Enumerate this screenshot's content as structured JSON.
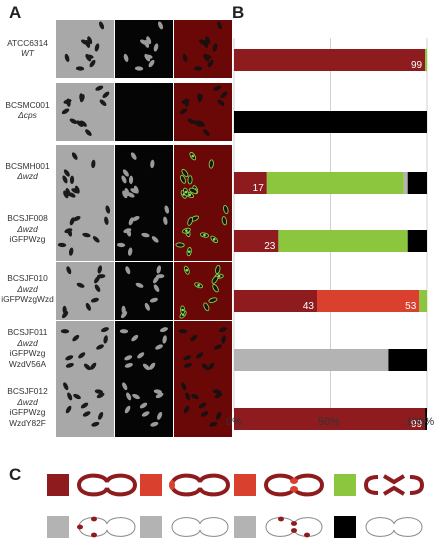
{
  "panels": {
    "a": "A",
    "b": "B",
    "c": "C"
  },
  "strains": [
    {
      "name": "ATCC6314",
      "genotype": "WT",
      "extra": []
    },
    {
      "name": "BCSMC001",
      "genotype": "Δcps",
      "extra": []
    },
    {
      "name": "BCSMH001",
      "genotype": "Δwzd",
      "extra": []
    },
    {
      "name": "BCSJF008",
      "genotype": "Δwzd",
      "extra": [
        "iGFPWzg"
      ]
    },
    {
      "name": "BCSJF010",
      "genotype": "Δwzd",
      "extra": [
        "iGFPWzgWzd"
      ]
    },
    {
      "name": "BCSJF011",
      "genotype": "Δwzd",
      "extra": [
        "iGFPWzg",
        "WzdV56A"
      ]
    },
    {
      "name": "BCSJF012",
      "genotype": "Δwzd",
      "extra": [
        "iGFPWzg",
        "WzdY82F"
      ]
    }
  ],
  "chart_data": {
    "type": "bar",
    "orientation": "horizontal-stacked",
    "categories": [
      "ATCC6314 WT",
      "BCSMC001 Δcps",
      "BCSMH001 Δwzd",
      "BCSJF008 Δwzd iGFPWzg",
      "BCSJF010 Δwzd iGFPWzgWzd",
      "BCSJF011 Δwzd iGFPWzg WzdV56A",
      "BCSJF012 Δwzd iGFPWzg WzdY82F"
    ],
    "series": [
      {
        "color": "#8e1c1f",
        "values": [
          99,
          0,
          17,
          23,
          43,
          0,
          99
        ]
      },
      {
        "color": "#d9412e",
        "values": [
          0,
          0,
          0,
          0,
          53,
          0,
          0
        ]
      },
      {
        "color": "#8cc63f",
        "values": [
          1,
          0,
          71,
          67,
          4,
          0,
          0
        ]
      },
      {
        "color": "#b3b3b3",
        "values": [
          0,
          0,
          2,
          0,
          0,
          80,
          0
        ]
      },
      {
        "color": "#000000",
        "values": [
          0,
          100,
          10,
          10,
          0,
          20,
          1
        ]
      }
    ],
    "data_labels": [
      {
        "row": 0,
        "series": 0,
        "text": "99"
      },
      {
        "row": 2,
        "series": 0,
        "text": "17"
      },
      {
        "row": 3,
        "series": 0,
        "text": "23"
      },
      {
        "row": 4,
        "series": 0,
        "text": "43"
      },
      {
        "row": 4,
        "series": 1,
        "text": "53"
      },
      {
        "row": 6,
        "series": 0,
        "text": "99"
      }
    ],
    "xlim": [
      0,
      100
    ],
    "ticks": [
      "0%",
      "50%",
      "100%"
    ],
    "grid": true
  },
  "legend_c": [
    {
      "color": "#8e1c1f",
      "shape": "full-capsule"
    },
    {
      "color": "#d9412e",
      "shape": "pole-patch-capsule"
    },
    {
      "color": "#d9412e",
      "shape": "septum-patch-capsule"
    },
    {
      "color": "#8cc63f",
      "shape": "broken-capsule"
    },
    {
      "color": "#b3b3b3",
      "shape": "pole-foci"
    },
    {
      "color": "#b3b3b3",
      "shape": "no-foci"
    },
    {
      "color": "#b3b3b3",
      "shape": "septum-foci"
    },
    {
      "color": "#000000",
      "shape": "no-capsule"
    }
  ]
}
